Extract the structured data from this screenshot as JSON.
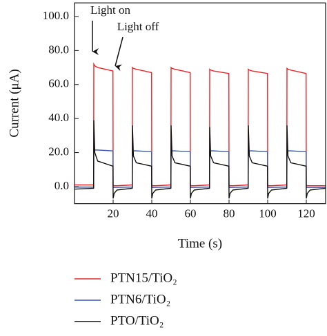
{
  "chart_data": {
    "type": "line",
    "annotations": [
      "Light on",
      "Light off"
    ],
    "xlabel": "Time (s)",
    "ylabel": "Current (μA)",
    "x": [
      0,
      9.9,
      10,
      10.5,
      12,
      19.9,
      20,
      20.5,
      22,
      29.9,
      30,
      30.5,
      32,
      39.9,
      40,
      40.5,
      42,
      49.9,
      50,
      50.5,
      52,
      59.9,
      60,
      60.5,
      62,
      69.9,
      70,
      70.5,
      72,
      79.9,
      80,
      80.5,
      82,
      89.9,
      90,
      90.5,
      92,
      99.9,
      100,
      100.5,
      102,
      109.9,
      110,
      110.5,
      112,
      119.9,
      120,
      120.5,
      122,
      130
    ],
    "series": [
      {
        "name": "PTN15/TiO₂",
        "color": "#e8262a",
        "values": [
          1,
          1,
          72,
          71,
          70,
          68,
          1,
          0.5,
          0.5,
          1,
          70,
          69.5,
          69,
          67,
          1,
          0.5,
          0.5,
          1,
          70,
          69.5,
          69,
          67,
          1,
          0.5,
          0.5,
          1,
          69,
          68.5,
          68,
          66.5,
          1,
          0.5,
          0.5,
          1,
          69,
          68.5,
          68,
          66.5,
          1,
          0.5,
          0.5,
          1,
          69.5,
          69,
          68.5,
          66.5,
          1,
          0.5,
          0.5,
          0.5
        ]
      },
      {
        "name": "PTN6/TiO₂",
        "color": "#3a56b0",
        "values": [
          -0.3,
          -0.3,
          21.5,
          21.5,
          21.5,
          21,
          -0.5,
          -0.5,
          -0.5,
          -0.3,
          21,
          21,
          21,
          20.5,
          -0.5,
          -0.5,
          -0.5,
          -0.3,
          21,
          21,
          21,
          20.5,
          -0.5,
          -0.5,
          -0.5,
          -0.3,
          21,
          21,
          21,
          20.5,
          -0.5,
          -0.5,
          -0.5,
          -0.3,
          21,
          21,
          21,
          20.5,
          -0.5,
          -0.5,
          -0.5,
          -0.3,
          21,
          21,
          21,
          20.5,
          -0.5,
          -0.5,
          -0.5,
          -0.5
        ]
      },
      {
        "name": "PTO/TiO₂",
        "color": "#111111",
        "values": [
          -1.5,
          -1,
          39,
          20,
          15,
          12,
          -7,
          -4,
          -2,
          -1,
          36,
          18,
          14,
          12,
          -7,
          -4,
          -2,
          -1,
          36,
          18,
          14,
          12,
          -7,
          -4,
          -2,
          -1,
          35,
          18,
          14,
          12,
          -7,
          -4,
          -2,
          -1,
          36,
          18,
          14,
          12,
          -7,
          -4,
          -2,
          -1,
          36,
          18,
          14,
          12,
          -7,
          -4,
          -2,
          -1
        ]
      }
    ],
    "xlim": [
      0,
      130
    ],
    "xticks": [
      20,
      40,
      60,
      80,
      100,
      120
    ],
    "ylim": [
      -10,
      108
    ],
    "yticks": [
      {
        "value": 0,
        "label": "0.0"
      },
      {
        "value": 20,
        "label": "20.0"
      },
      {
        "value": 40,
        "label": "40.0"
      },
      {
        "value": 60,
        "label": "60.0"
      },
      {
        "value": 80,
        "label": "80.0"
      },
      {
        "value": 100,
        "label": "100.0"
      }
    ]
  }
}
